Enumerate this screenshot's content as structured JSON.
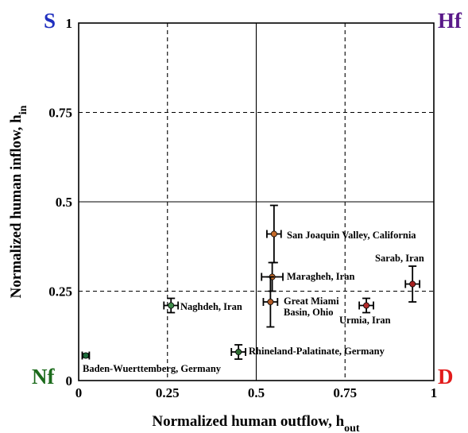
{
  "chart_data": {
    "type": "scatter",
    "xlabel": "Normalized human outflow, h",
    "xlabel_sub": "out",
    "ylabel": "Normalized human inflow, h",
    "ylabel_sub": "in",
    "xlim": [
      0,
      1
    ],
    "ylim": [
      0,
      1
    ],
    "x_ticks": [
      "0",
      "0.25",
      "0.5",
      "0.75",
      "1"
    ],
    "y_ticks": [
      "0",
      "0.25",
      "0.5",
      "0.75",
      "1"
    ],
    "gridlines": "dashed at 0.25 and 0.75, solid at 0.5",
    "corner_labels": [
      {
        "text": "S",
        "position": "top-left",
        "color": "#1f2fbf"
      },
      {
        "text": "Hf",
        "position": "top-right",
        "color": "#5a1a8a"
      },
      {
        "text": "Nf",
        "position": "bottom-left",
        "color": "#1c6b1c"
      },
      {
        "text": "D",
        "position": "bottom-right",
        "color": "#e21b1b"
      }
    ],
    "points": [
      {
        "label": "Baden-Wuerttemberg, Germany",
        "x": 0.02,
        "y": 0.07,
        "xerr": 0.01,
        "yerr": 0.005,
        "color": "#1c6b3a"
      },
      {
        "label": "Naghdeh, Iran",
        "x": 0.26,
        "y": 0.21,
        "xerr": 0.02,
        "yerr": 0.02,
        "color": "#3e8c4a"
      },
      {
        "label": "Rhineland-Palatinate, Germany",
        "x": 0.45,
        "y": 0.08,
        "xerr": 0.02,
        "yerr": 0.02,
        "color": "#2e6b32"
      },
      {
        "label": "San Joaquin Valley, California",
        "x": 0.55,
        "y": 0.41,
        "xerr": 0.02,
        "yerr": 0.08,
        "color": "#c46a2a"
      },
      {
        "label": "Maragheh, Iran",
        "x": 0.545,
        "y": 0.29,
        "xerr": 0.03,
        "yerr": 0.04,
        "color": "#c46a2a"
      },
      {
        "label": "Great Miami Basin, Ohio",
        "x": 0.54,
        "y": 0.22,
        "xerr": 0.02,
        "yerr": 0.07,
        "color": "#b05a26"
      },
      {
        "label": "Urmia, Iran",
        "x": 0.81,
        "y": 0.21,
        "xerr": 0.02,
        "yerr": 0.02,
        "color": "#b02a2a"
      },
      {
        "label": "Sarab, Iran",
        "x": 0.94,
        "y": 0.27,
        "xerr": 0.02,
        "yerr": 0.05,
        "color": "#a82020"
      }
    ]
  }
}
